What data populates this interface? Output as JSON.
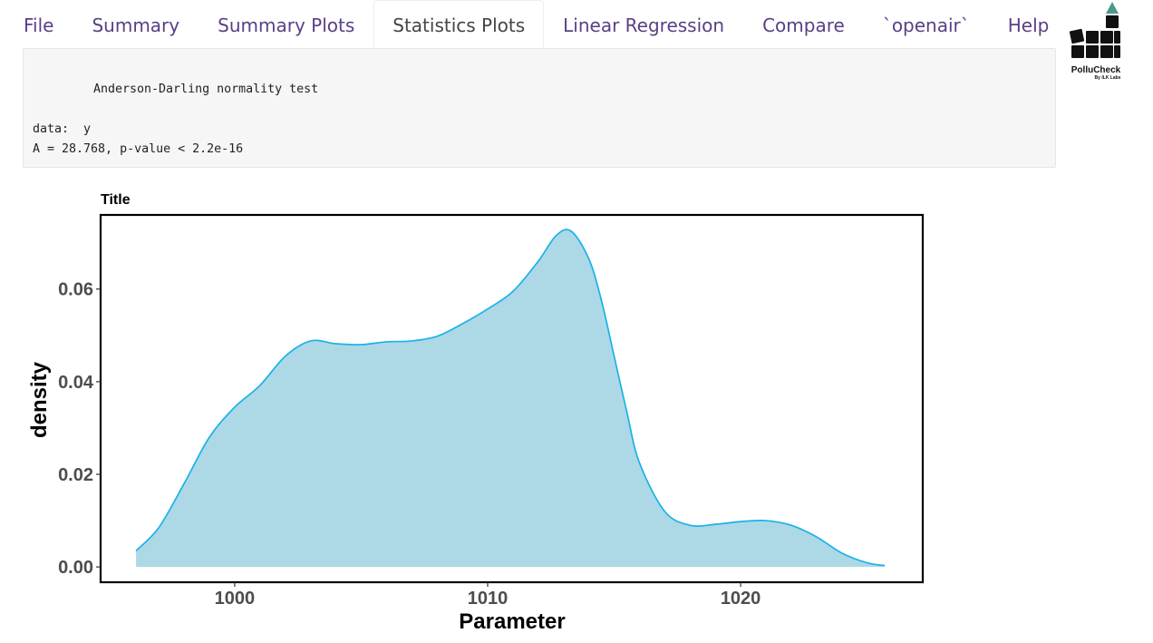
{
  "navbar": {
    "items": [
      {
        "label": "File",
        "active": false
      },
      {
        "label": "Summary",
        "active": false
      },
      {
        "label": "Summary Plots",
        "active": false
      },
      {
        "label": "Statistics Plots",
        "active": true
      },
      {
        "label": "Linear Regression",
        "active": false
      },
      {
        "label": "Compare",
        "active": false
      },
      {
        "label": "`openair`",
        "active": false
      },
      {
        "label": "Help",
        "active": false
      }
    ]
  },
  "logo": {
    "name": "PolluCheck",
    "tagline": "By ILK Labs",
    "colors": {
      "blocks": "#111111",
      "triangle": "#4a9a8c"
    }
  },
  "test_output": {
    "method": "Anderson-Darling normality test",
    "data_line": "data:  y",
    "result_line": "A = 28.768, p-value < 2.2e-16"
  },
  "chart_data": {
    "type": "area",
    "title": "Title",
    "xlabel": "Parameter",
    "ylabel": "density",
    "xlim": [
      994.7,
      1027.2
    ],
    "ylim": [
      -0.0033,
      0.076
    ],
    "xticks": [
      1000,
      1010,
      1020
    ],
    "xtick_labels": [
      "1000",
      "1010",
      "1020"
    ],
    "yticks": [
      0.0,
      0.02,
      0.04,
      0.06
    ],
    "ytick_labels": [
      "0.00",
      "0.02",
      "0.04",
      "0.06"
    ],
    "grid": false,
    "fill_color": "#add8e6",
    "line_color": "#1ab2e8",
    "series": [
      {
        "x": [
          996.1,
          997.0,
          998.0,
          999.0,
          1000.0,
          1001.0,
          1002.0,
          1003.0,
          1004.0,
          1005.0,
          1006.0,
          1007.0,
          1008.0,
          1009.0,
          1010.0,
          1011.0,
          1012.0,
          1012.7,
          1013.3,
          1014.0,
          1014.5,
          1015.0,
          1015.5,
          1016.0,
          1017.0,
          1018.0,
          1019.0,
          1020.0,
          1021.0,
          1022.0,
          1023.0,
          1024.0,
          1025.0,
          1025.7
        ],
        "y": [
          0.0035,
          0.0085,
          0.018,
          0.028,
          0.0345,
          0.0392,
          0.0455,
          0.0488,
          0.0482,
          0.048,
          0.0486,
          0.0488,
          0.0498,
          0.0525,
          0.0557,
          0.0595,
          0.066,
          0.0715,
          0.0725,
          0.0665,
          0.0575,
          0.0455,
          0.0335,
          0.0225,
          0.012,
          0.009,
          0.0092,
          0.0098,
          0.01,
          0.009,
          0.0065,
          0.003,
          0.0009,
          0.0003
        ]
      }
    ]
  }
}
